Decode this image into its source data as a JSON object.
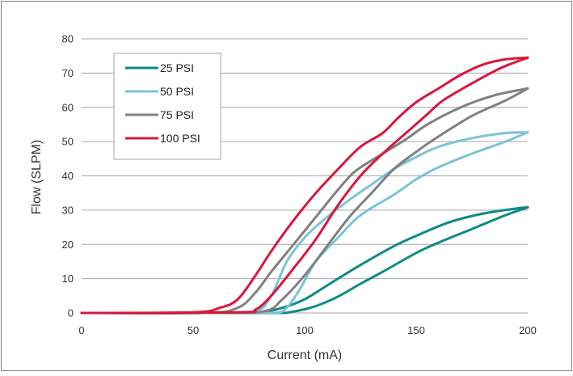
{
  "chart_data": {
    "type": "line",
    "title": "",
    "xlabel": "Current (mA)",
    "ylabel": "Flow (SLPM)",
    "xlim": [
      0,
      200
    ],
    "ylim": [
      0,
      80
    ],
    "x_ticks": [
      0,
      50,
      100,
      150,
      200
    ],
    "y_ticks": [
      0,
      10,
      20,
      30,
      40,
      50,
      60,
      70,
      80
    ],
    "grid": "horizontal",
    "legend_position": "top-left",
    "series": [
      {
        "name": "25 PSI",
        "color": "#0e8a87",
        "rising": [
          [
            0,
            0
          ],
          [
            60,
            0
          ],
          [
            80,
            0.3
          ],
          [
            90,
            1.5
          ],
          [
            100,
            4
          ],
          [
            110,
            8
          ],
          [
            125,
            14
          ],
          [
            140,
            19.5
          ],
          [
            150,
            22.5
          ],
          [
            165,
            26.5
          ],
          [
            180,
            29
          ],
          [
            195,
            30.5
          ],
          [
            200,
            30.8
          ]
        ],
        "falling": [
          [
            200,
            30.8
          ],
          [
            190,
            28.5
          ],
          [
            175,
            24.5
          ],
          [
            160,
            20.5
          ],
          [
            150,
            17.5
          ],
          [
            135,
            12
          ],
          [
            125,
            8.5
          ],
          [
            115,
            4.8
          ],
          [
            105,
            2
          ],
          [
            95,
            0.4
          ],
          [
            88,
            0
          ],
          [
            60,
            0
          ],
          [
            0,
            0
          ]
        ]
      },
      {
        "name": "50 PSI",
        "color": "#7bc4d7",
        "rising": [
          [
            0,
            0
          ],
          [
            60,
            0
          ],
          [
            78,
            0.5
          ],
          [
            85,
            5
          ],
          [
            92,
            15
          ],
          [
            100,
            22
          ],
          [
            110,
            28
          ],
          [
            120,
            33
          ],
          [
            130,
            37.5
          ],
          [
            140,
            42
          ],
          [
            150,
            45.5
          ],
          [
            160,
            48.5
          ],
          [
            175,
            51
          ],
          [
            190,
            52.5
          ],
          [
            200,
            52.7
          ]
        ],
        "falling": [
          [
            200,
            52.7
          ],
          [
            190,
            50
          ],
          [
            175,
            46.5
          ],
          [
            160,
            42.5
          ],
          [
            150,
            39
          ],
          [
            140,
            34.5
          ],
          [
            125,
            28.5
          ],
          [
            115,
            22
          ],
          [
            105,
            15
          ],
          [
            97,
            6
          ],
          [
            91,
            1
          ],
          [
            85,
            0
          ],
          [
            60,
            0
          ],
          [
            0,
            0
          ]
        ]
      },
      {
        "name": "75 PSI",
        "color": "#808080",
        "rising": [
          [
            0,
            0
          ],
          [
            55,
            0
          ],
          [
            70,
            1.5
          ],
          [
            78,
            6
          ],
          [
            85,
            12
          ],
          [
            95,
            20
          ],
          [
            105,
            28
          ],
          [
            115,
            36
          ],
          [
            122,
            41
          ],
          [
            130,
            44.5
          ],
          [
            145,
            50.5
          ],
          [
            155,
            55
          ],
          [
            170,
            60
          ],
          [
            185,
            63.5
          ],
          [
            200,
            65.5
          ]
        ],
        "falling": [
          [
            200,
            65.5
          ],
          [
            190,
            62
          ],
          [
            175,
            57.5
          ],
          [
            160,
            51.5
          ],
          [
            150,
            47
          ],
          [
            140,
            42
          ],
          [
            130,
            35
          ],
          [
            120,
            28
          ],
          [
            110,
            19.5
          ],
          [
            100,
            11
          ],
          [
            90,
            4
          ],
          [
            82,
            0.5
          ],
          [
            60,
            0
          ],
          [
            0,
            0
          ]
        ]
      },
      {
        "name": "100 PSI",
        "color": "#d7183c",
        "rising": [
          [
            0,
            0
          ],
          [
            50,
            0.2
          ],
          [
            62,
            1.5
          ],
          [
            70,
            4
          ],
          [
            78,
            11
          ],
          [
            85,
            18
          ],
          [
            95,
            27
          ],
          [
            105,
            35
          ],
          [
            115,
            42
          ],
          [
            125,
            48.5
          ],
          [
            135,
            52.5
          ],
          [
            142,
            57
          ],
          [
            150,
            61.5
          ],
          [
            160,
            65.5
          ],
          [
            170,
            69.5
          ],
          [
            180,
            72.5
          ],
          [
            190,
            74
          ],
          [
            200,
            74.5
          ]
        ],
        "falling": [
          [
            200,
            74.5
          ],
          [
            188,
            71.5
          ],
          [
            175,
            67
          ],
          [
            162,
            62
          ],
          [
            155,
            58
          ],
          [
            148,
            54
          ],
          [
            135,
            46.5
          ],
          [
            125,
            40
          ],
          [
            115,
            31.5
          ],
          [
            105,
            21.5
          ],
          [
            95,
            13
          ],
          [
            85,
            5
          ],
          [
            78,
            1
          ],
          [
            70,
            0.2
          ],
          [
            0,
            0
          ]
        ]
      }
    ]
  }
}
